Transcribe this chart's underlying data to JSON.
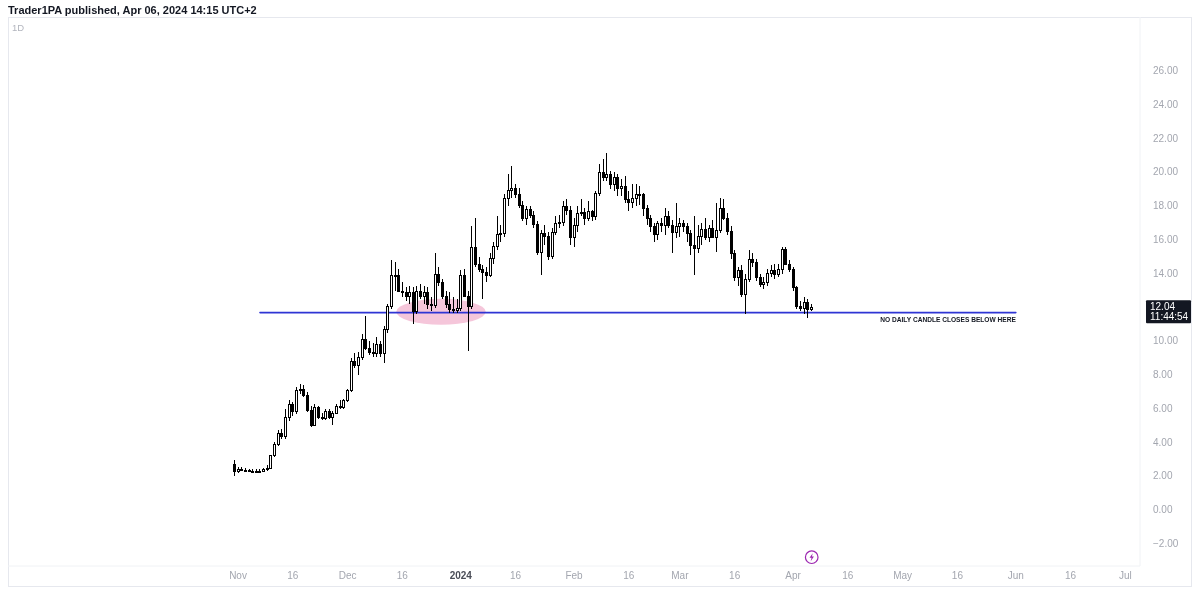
{
  "chart_data": {
    "type": "candlestick",
    "title": "Trader1PA published, Apr 06, 2024 14:15 UTC+2",
    "subtitle": "1D",
    "x": [
      "2023-10-31",
      "2023-11-01",
      "2023-11-02",
      "2023-11-03",
      "2023-11-04",
      "2023-11-05",
      "2023-11-06",
      "2023-11-07",
      "2023-11-08",
      "2023-11-09",
      "2023-11-10",
      "2023-11-11",
      "2023-11-12",
      "2023-11-13",
      "2023-11-14",
      "2023-11-15",
      "2023-11-16",
      "2023-11-17",
      "2023-11-18",
      "2023-11-19",
      "2023-11-20",
      "2023-11-21",
      "2023-11-22",
      "2023-11-23",
      "2023-11-24",
      "2023-11-25",
      "2023-11-26",
      "2023-11-27",
      "2023-11-28",
      "2023-11-29",
      "2023-11-30",
      "2023-12-01",
      "2023-12-02",
      "2023-12-03",
      "2023-12-04",
      "2023-12-05",
      "2023-12-06",
      "2023-12-07",
      "2023-12-08",
      "2023-12-09",
      "2023-12-10",
      "2023-12-11",
      "2023-12-12",
      "2023-12-13",
      "2023-12-14",
      "2023-12-15",
      "2023-12-16",
      "2023-12-17",
      "2023-12-18",
      "2023-12-19",
      "2023-12-20",
      "2023-12-21",
      "2023-12-22",
      "2023-12-23",
      "2023-12-24",
      "2023-12-25",
      "2023-12-26",
      "2023-12-27",
      "2023-12-28",
      "2023-12-29",
      "2023-12-30",
      "2023-12-31",
      "2024-01-01",
      "2024-01-02",
      "2024-01-03",
      "2024-01-04",
      "2024-01-05",
      "2024-01-06",
      "2024-01-07",
      "2024-01-08",
      "2024-01-09",
      "2024-01-10",
      "2024-01-11",
      "2024-01-12",
      "2024-01-13",
      "2024-01-14",
      "2024-01-15",
      "2024-01-16",
      "2024-01-17",
      "2024-01-18",
      "2024-01-19",
      "2024-01-20",
      "2024-01-21",
      "2024-01-22",
      "2024-01-23",
      "2024-01-24",
      "2024-01-25",
      "2024-01-26",
      "2024-01-27",
      "2024-01-28",
      "2024-01-29",
      "2024-01-30",
      "2024-01-31",
      "2024-02-01",
      "2024-02-02",
      "2024-02-03",
      "2024-02-04",
      "2024-02-05",
      "2024-02-06",
      "2024-02-07",
      "2024-02-08",
      "2024-02-09",
      "2024-02-10",
      "2024-02-11",
      "2024-02-12",
      "2024-02-13",
      "2024-02-14",
      "2024-02-15",
      "2024-02-16",
      "2024-02-17",
      "2024-02-18",
      "2024-02-19",
      "2024-02-20",
      "2024-02-21",
      "2024-02-22",
      "2024-02-23",
      "2024-02-24",
      "2024-02-25",
      "2024-02-26",
      "2024-02-27",
      "2024-02-28",
      "2024-02-29",
      "2024-03-01",
      "2024-03-02",
      "2024-03-03",
      "2024-03-04",
      "2024-03-05",
      "2024-03-06",
      "2024-03-07",
      "2024-03-08",
      "2024-03-09",
      "2024-03-10",
      "2024-03-11",
      "2024-03-12",
      "2024-03-13",
      "2024-03-14",
      "2024-03-15",
      "2024-03-16",
      "2024-03-17",
      "2024-03-18",
      "2024-03-19",
      "2024-03-20",
      "2024-03-21",
      "2024-03-22",
      "2024-03-23",
      "2024-03-24",
      "2024-03-25",
      "2024-03-26",
      "2024-03-27",
      "2024-03-28",
      "2024-03-29",
      "2024-03-30",
      "2024-03-31",
      "2024-04-01",
      "2024-04-02",
      "2024-04-03",
      "2024-04-04",
      "2024-04-05",
      "2024-04-06"
    ],
    "ohlc": [
      [
        2.75,
        2.95,
        2.0,
        2.3
      ],
      [
        2.3,
        2.55,
        2.2,
        2.45
      ],
      [
        2.45,
        2.55,
        2.3,
        2.4
      ],
      [
        2.4,
        2.5,
        2.3,
        2.36
      ],
      [
        2.36,
        2.45,
        2.3,
        2.34
      ],
      [
        2.34,
        2.42,
        2.28,
        2.32
      ],
      [
        2.32,
        2.42,
        2.27,
        2.35
      ],
      [
        2.35,
        2.45,
        2.3,
        2.33
      ],
      [
        2.33,
        2.5,
        2.3,
        2.42
      ],
      [
        2.42,
        2.65,
        2.35,
        2.52
      ],
      [
        2.52,
        3.3,
        2.45,
        3.25
      ],
      [
        3.25,
        4.05,
        3.15,
        3.95
      ],
      [
        3.95,
        4.75,
        3.8,
        4.6
      ],
      [
        4.6,
        4.8,
        4.2,
        4.4
      ],
      [
        4.4,
        6.0,
        4.2,
        5.5
      ],
      [
        5.5,
        6.5,
        5.3,
        6.3
      ],
      [
        6.3,
        6.4,
        5.6,
        5.85
      ],
      [
        5.85,
        7.3,
        5.7,
        7.1
      ],
      [
        7.1,
        7.45,
        6.9,
        7.2
      ],
      [
        7.2,
        7.4,
        6.7,
        6.85
      ],
      [
        6.85,
        7.0,
        5.8,
        5.95
      ],
      [
        5.95,
        6.15,
        4.95,
        5.05
      ],
      [
        5.05,
        6.3,
        5.0,
        6.1
      ],
      [
        6.1,
        6.2,
        5.4,
        5.5
      ],
      [
        5.5,
        5.75,
        5.35,
        5.45
      ],
      [
        5.45,
        6.0,
        5.35,
        5.9
      ],
      [
        5.9,
        6.0,
        5.4,
        5.5
      ],
      [
        5.5,
        5.85,
        5.05,
        5.75
      ],
      [
        5.75,
        6.3,
        5.7,
        6.2
      ],
      [
        6.2,
        6.5,
        6.0,
        6.1
      ],
      [
        6.1,
        6.6,
        6.0,
        6.5
      ],
      [
        6.5,
        7.2,
        6.4,
        7.1
      ],
      [
        7.1,
        9.0,
        7.0,
        8.85
      ],
      [
        8.85,
        9.3,
        8.4,
        8.6
      ],
      [
        8.6,
        9.35,
        8.0,
        9.05
      ],
      [
        9.05,
        10.45,
        8.9,
        10.15
      ],
      [
        10.15,
        11.5,
        9.5,
        9.6
      ],
      [
        9.6,
        10.0,
        9.2,
        9.35
      ],
      [
        9.35,
        9.9,
        9.1,
        9.3
      ],
      [
        9.3,
        10.25,
        9.1,
        9.85
      ],
      [
        9.85,
        10.0,
        9.1,
        9.3
      ],
      [
        9.3,
        10.9,
        8.7,
        10.75
      ],
      [
        10.75,
        12.2,
        10.5,
        12.1
      ],
      [
        12.1,
        14.8,
        11.9,
        13.9
      ],
      [
        13.9,
        14.7,
        13.0,
        13.95
      ],
      [
        13.95,
        14.3,
        12.9,
        13.0
      ],
      [
        13.0,
        13.5,
        12.6,
        12.9
      ],
      [
        12.9,
        13.2,
        12.4,
        12.7
      ],
      [
        12.7,
        13.3,
        12.2,
        12.95
      ],
      [
        12.95,
        13.2,
        11.0,
        11.8
      ],
      [
        11.8,
        13.3,
        11.6,
        13.0
      ],
      [
        13.0,
        13.4,
        12.5,
        12.7
      ],
      [
        12.7,
        13.3,
        12.2,
        12.9
      ],
      [
        12.9,
        13.2,
        11.9,
        12.2
      ],
      [
        12.2,
        12.6,
        11.8,
        12.15
      ],
      [
        12.15,
        15.2,
        12.0,
        14.0
      ],
      [
        14.0,
        14.4,
        13.3,
        13.5
      ],
      [
        13.5,
        13.7,
        12.5,
        12.7
      ],
      [
        12.7,
        13.0,
        12.0,
        12.2
      ],
      [
        12.2,
        12.9,
        11.7,
        11.9
      ],
      [
        11.9,
        12.6,
        11.7,
        11.85
      ],
      [
        11.85,
        12.5,
        11.7,
        12.0
      ],
      [
        12.0,
        14.2,
        11.8,
        13.9
      ],
      [
        13.9,
        14.3,
        12.6,
        12.7
      ],
      [
        12.7,
        13.0,
        9.4,
        12.1
      ],
      [
        12.1,
        16.8,
        11.9,
        15.6
      ],
      [
        15.6,
        17.3,
        14.4,
        14.6
      ],
      [
        14.6,
        15.0,
        14.1,
        14.3
      ],
      [
        14.3,
        14.5,
        12.5,
        14.1
      ],
      [
        14.1,
        14.4,
        13.5,
        13.95
      ],
      [
        13.95,
        15.2,
        13.8,
        14.95
      ],
      [
        14.95,
        15.9,
        14.6,
        15.65
      ],
      [
        15.65,
        17.4,
        15.4,
        16.35
      ],
      [
        16.35,
        16.9,
        15.9,
        16.4
      ],
      [
        16.4,
        18.7,
        16.2,
        18.5
      ],
      [
        18.5,
        19.9,
        18.0,
        18.95
      ],
      [
        18.95,
        20.4,
        18.5,
        19.05
      ],
      [
        19.05,
        19.3,
        18.5,
        18.7
      ],
      [
        18.7,
        19.1,
        17.9,
        18.1
      ],
      [
        18.1,
        18.3,
        17.1,
        17.3
      ],
      [
        17.3,
        18.0,
        16.9,
        17.85
      ],
      [
        17.85,
        18.0,
        17.3,
        17.5
      ],
      [
        17.5,
        17.7,
        16.7,
        16.95
      ],
      [
        16.95,
        17.1,
        15.1,
        15.3
      ],
      [
        15.3,
        16.6,
        13.9,
        16.4
      ],
      [
        16.4,
        16.9,
        15.7,
        16.25
      ],
      [
        16.25,
        16.5,
        14.8,
        15.05
      ],
      [
        15.05,
        16.7,
        14.9,
        16.5
      ],
      [
        16.5,
        17.4,
        16.3,
        17.0
      ],
      [
        17.0,
        17.5,
        16.7,
        17.05
      ],
      [
        17.05,
        18.3,
        16.8,
        18.0
      ],
      [
        18.0,
        18.4,
        17.5,
        17.8
      ],
      [
        17.8,
        18.0,
        15.7,
        16.15
      ],
      [
        16.15,
        17.3,
        15.6,
        16.9
      ],
      [
        16.9,
        18.0,
        16.5,
        17.6
      ],
      [
        17.6,
        18.4,
        17.4,
        17.65
      ],
      [
        17.65,
        17.9,
        16.9,
        17.3
      ],
      [
        17.3,
        18.3,
        17.1,
        17.7
      ],
      [
        17.7,
        17.8,
        17.1,
        17.4
      ],
      [
        17.4,
        18.9,
        17.2,
        18.8
      ],
      [
        18.8,
        20.5,
        18.6,
        20.05
      ],
      [
        20.05,
        20.8,
        19.5,
        19.7
      ],
      [
        19.7,
        21.15,
        19.5,
        19.9
      ],
      [
        19.9,
        20.1,
        19.0,
        19.3
      ],
      [
        19.3,
        20.0,
        18.9,
        19.7
      ],
      [
        19.7,
        19.9,
        18.6,
        19.1
      ],
      [
        19.1,
        19.6,
        18.6,
        19.2
      ],
      [
        19.2,
        19.8,
        18.2,
        18.4
      ],
      [
        18.4,
        18.9,
        17.7,
        18.25
      ],
      [
        18.25,
        19.3,
        17.9,
        18.5
      ],
      [
        18.5,
        19.3,
        18.0,
        18.7
      ],
      [
        18.7,
        19.2,
        18.1,
        18.75
      ],
      [
        18.75,
        18.8,
        17.4,
        17.9
      ],
      [
        17.9,
        18.1,
        16.9,
        17.3
      ],
      [
        17.3,
        17.5,
        16.5,
        16.85
      ],
      [
        16.85,
        17.0,
        15.9,
        16.35
      ],
      [
        16.35,
        17.1,
        16.0,
        17.0
      ],
      [
        17.0,
        17.3,
        16.5,
        16.9
      ],
      [
        16.9,
        17.9,
        16.3,
        17.4
      ],
      [
        17.4,
        17.7,
        16.7,
        16.9
      ],
      [
        16.9,
        17.2,
        15.2,
        16.45
      ],
      [
        16.45,
        18.2,
        16.1,
        16.8
      ],
      [
        16.8,
        17.3,
        16.2,
        17.0
      ],
      [
        17.0,
        17.2,
        16.5,
        16.8
      ],
      [
        16.8,
        17.0,
        15.9,
        16.4
      ],
      [
        16.4,
        16.6,
        15.1,
        15.7
      ],
      [
        15.7,
        17.4,
        13.9,
        15.5
      ],
      [
        15.5,
        16.9,
        15.2,
        16.25
      ],
      [
        16.25,
        17.0,
        15.7,
        16.65
      ],
      [
        16.65,
        17.3,
        16.0,
        16.2
      ],
      [
        16.2,
        16.9,
        15.9,
        16.7
      ],
      [
        16.7,
        17.2,
        16.1,
        16.2
      ],
      [
        16.2,
        18.2,
        15.3,
        16.6
      ],
      [
        16.6,
        18.5,
        16.4,
        17.9
      ],
      [
        17.9,
        18.4,
        17.2,
        17.3
      ],
      [
        17.3,
        17.6,
        16.3,
        16.55
      ],
      [
        16.55,
        16.8,
        14.9,
        15.2
      ],
      [
        15.2,
        15.4,
        13.6,
        13.8
      ],
      [
        13.8,
        14.4,
        13.3,
        14.2
      ],
      [
        14.2,
        14.5,
        12.6,
        12.8
      ],
      [
        12.8,
        14.0,
        11.6,
        13.7
      ],
      [
        13.7,
        15.4,
        13.5,
        14.85
      ],
      [
        14.85,
        15.2,
        14.4,
        14.7
      ],
      [
        14.7,
        14.9,
        13.6,
        13.8
      ],
      [
        13.8,
        14.0,
        13.2,
        13.4
      ],
      [
        13.4,
        13.8,
        13.1,
        13.5
      ],
      [
        13.5,
        14.3,
        13.3,
        14.05
      ],
      [
        14.05,
        14.5,
        13.8,
        14.25
      ],
      [
        14.25,
        14.6,
        13.7,
        14.0
      ],
      [
        14.0,
        14.6,
        13.8,
        14.3
      ],
      [
        14.3,
        15.6,
        14.0,
        15.45
      ],
      [
        15.45,
        15.6,
        14.5,
        14.6
      ],
      [
        14.6,
        14.8,
        14.1,
        14.3
      ],
      [
        14.3,
        14.4,
        13.0,
        13.2
      ],
      [
        13.2,
        13.3,
        11.9,
        12.1
      ],
      [
        12.1,
        12.4,
        11.8,
        12.0
      ],
      [
        12.0,
        12.6,
        11.6,
        12.3
      ],
      [
        12.3,
        12.5,
        11.4,
        11.9
      ],
      [
        11.9,
        12.2,
        11.8,
        12.04
      ]
    ],
    "color": "#000000",
    "series": [
      {
        "type": "line",
        "x": [
          "2023-11-07",
          "2024-06-01"
        ],
        "values": [
          11.7,
          11.7
        ],
        "color": "#2f35d4"
      }
    ],
    "annotations": [
      {
        "text": "NO DAILY CANDLE CLOSES BELOW HERE",
        "x": "2024-06-01",
        "y": 11.7
      },
      "12.04",
      "11:44:54"
    ],
    "xlim": [
      "2023-08-30",
      "2024-07-05"
    ],
    "xticks": [
      {
        "value": "2023-11-01",
        "label": "Nov"
      },
      {
        "value": "2023-11-16",
        "label": "16"
      },
      {
        "value": "2023-12-01",
        "label": "Dec"
      },
      {
        "value": "2023-12-16",
        "label": "16"
      },
      {
        "value": "2024-01-01",
        "label": "2024"
      },
      {
        "value": "2024-01-16",
        "label": "16"
      },
      {
        "value": "2024-02-01",
        "label": "Feb"
      },
      {
        "value": "2024-02-16",
        "label": "16"
      },
      {
        "value": "2024-03-01",
        "label": "Mar"
      },
      {
        "value": "2024-03-16",
        "label": "16"
      },
      {
        "value": "2024-04-01",
        "label": "Apr"
      },
      {
        "value": "2024-04-16",
        "label": "16"
      },
      {
        "value": "2024-05-01",
        "label": "May"
      },
      {
        "value": "2024-05-16",
        "label": "16"
      },
      {
        "value": "2024-06-01",
        "label": "Jun"
      },
      {
        "value": "2024-06-16",
        "label": "16"
      },
      {
        "value": "2024-07-01",
        "label": "Jul"
      }
    ],
    "ylim": [
      -3.3,
      29.2
    ],
    "yticks": [
      {
        "value": -2,
        "label": "−2.00"
      },
      {
        "value": 0,
        "label": "0.00"
      },
      {
        "value": 2,
        "label": "2.00"
      },
      {
        "value": 4,
        "label": "4.00"
      },
      {
        "value": 6,
        "label": "6.00"
      },
      {
        "value": 8,
        "label": "8.00"
      },
      {
        "value": 10,
        "label": "10.00"
      },
      {
        "value": 14,
        "label": "14.00"
      },
      {
        "value": 16,
        "label": "16.00"
      },
      {
        "value": 18,
        "label": "18.00"
      },
      {
        "value": 20,
        "label": "20.00"
      },
      {
        "value": 22,
        "label": "22.00"
      },
      {
        "value": 24,
        "label": "24.00"
      },
      {
        "value": 26,
        "label": "26.00"
      }
    ]
  }
}
